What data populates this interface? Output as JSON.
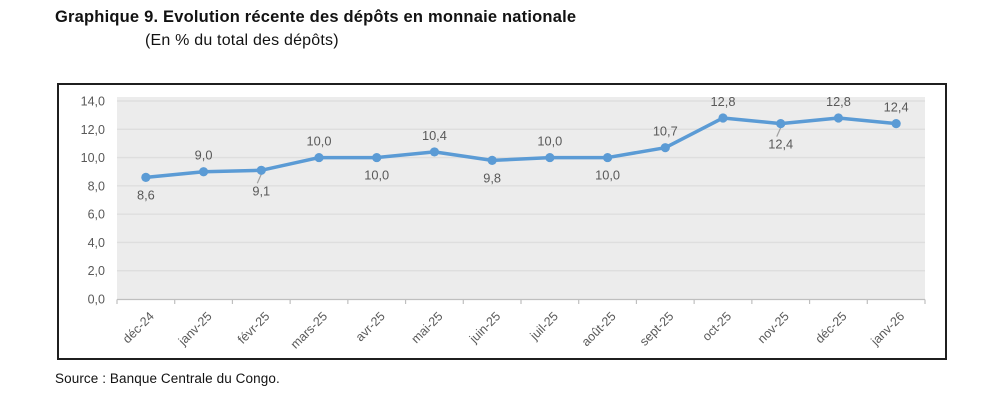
{
  "title": "Graphique 9. Evolution récente des dépôts en monnaie nationale",
  "subtitle": "(En % du total des dépôts)",
  "source": "Source : Banque Centrale du Congo.",
  "chart_data": {
    "type": "line",
    "title": "Graphique 9. Evolution récente des dépôts en monnaie nationale",
    "subtitle": "(En % du total des dépôts)",
    "categories": [
      "déc-24",
      "janv-25",
      "févr-25",
      "mars-25",
      "avr-25",
      "mai-25",
      "juin-25",
      "juil-25",
      "août-25",
      "sept-25",
      "oct-25",
      "nov-25",
      "déc-25",
      "janv-26"
    ],
    "values": [
      8.6,
      9.0,
      9.1,
      10.0,
      10.0,
      10.4,
      9.8,
      10.0,
      10.0,
      10.7,
      12.8,
      12.4,
      12.8,
      12.4
    ],
    "point_labels": [
      "8,6",
      "9,0",
      "9,1",
      "10,0",
      "10,0",
      "10,4",
      "9,8",
      "10,0",
      "10,0",
      "10,7",
      "12,8",
      "12,4",
      "12,8",
      "12,4"
    ],
    "label_positions": [
      "below",
      "above",
      "below",
      "above",
      "below",
      "above",
      "below",
      "above",
      "below",
      "above",
      "above",
      "below",
      "above",
      "above"
    ],
    "leader_line_indices": [
      2,
      11
    ],
    "ylim": [
      0,
      14
    ],
    "ytick_step": 2,
    "ytick_labels": [
      "0,0",
      "2,0",
      "4,0",
      "6,0",
      "8,0",
      "10,0",
      "12,0",
      "14,0"
    ],
    "xlabel": "",
    "ylabel": "",
    "grid": true,
    "legend": "none",
    "colors": {
      "line": "#5B9BD5",
      "plot_bg": "#ECECEC",
      "gridline": "#DEDEDE",
      "axis": "#BFBFBF",
      "tick_label": "#595959",
      "data_label": "#595959",
      "leader": "#A0A0A0"
    }
  }
}
